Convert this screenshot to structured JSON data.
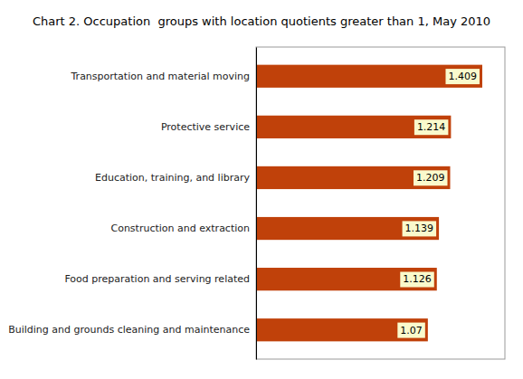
{
  "chart_data": {
    "type": "bar",
    "orientation": "horizontal",
    "title": "Chart 2. Occupation  groups with location quotients greater than 1, May 2010",
    "categories": [
      "Building and grounds cleaning and maintenance",
      "Food preparation and serving related",
      "Construction and extraction",
      "Education, training, and library",
      "Protective service",
      "Transportation and material moving"
    ],
    "values": [
      1.07,
      1.126,
      1.139,
      1.209,
      1.214,
      1.409
    ],
    "color": "#C0410A",
    "xlim": [
      0,
      1.55
    ],
    "data_labels": true,
    "tick_labels": "y"
  }
}
